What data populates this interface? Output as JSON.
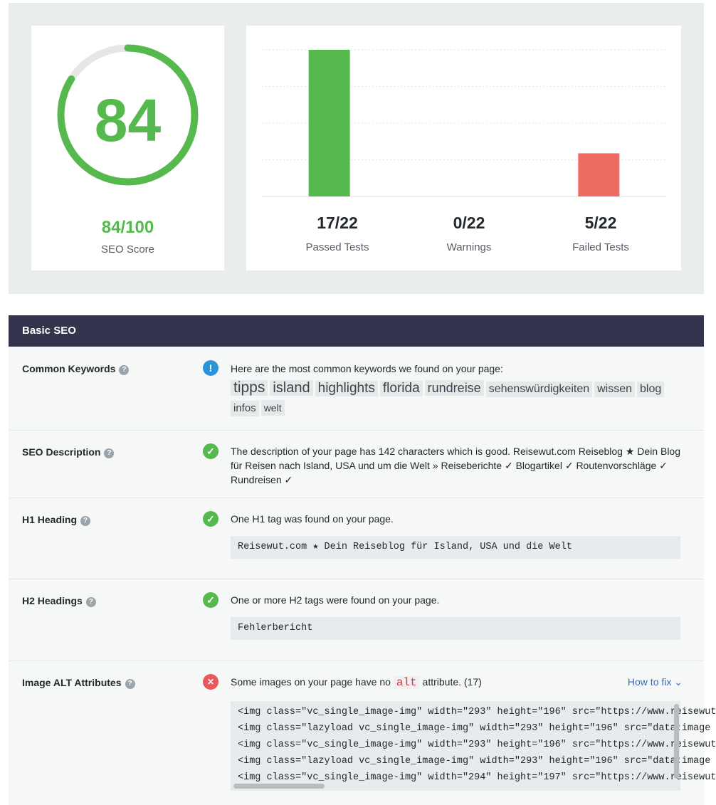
{
  "score": {
    "value": "84",
    "value_fraction": "84/100",
    "label": "SEO Score",
    "percent": 84,
    "color": "#55b94e"
  },
  "chart_data": {
    "type": "bar",
    "categories": [
      "Passed Tests",
      "Warnings",
      "Failed Tests"
    ],
    "values": [
      17,
      0,
      5
    ],
    "value_labels": [
      "17/22",
      "0/22",
      "5/22"
    ],
    "ymax": 22,
    "colors": [
      "#55b94e",
      "#e9edee",
      "#ee6b63"
    ],
    "grid": true
  },
  "section": {
    "title": "Basic SEO"
  },
  "rows": {
    "keywords": {
      "title": "Common Keywords",
      "text": "Here are the most common keywords we found on your page:",
      "items": [
        "tipps",
        "island",
        "highlights",
        "florida",
        "rundreise",
        "sehenswürdigkeiten",
        "wissen",
        "blog",
        "infos",
        "welt"
      ]
    },
    "description": {
      "title": "SEO Description",
      "text": "The description of your page has 142 characters which is good. Reisewut.com Reiseblog ★ Dein Blog für Reisen nach Island, USA und um die Welt » Reiseberichte ✓ Blogartikel ✓ Routenvorschläge ✓ Rundreisen ✓"
    },
    "h1": {
      "title": "H1 Heading",
      "text": "One H1 tag was found on your page.",
      "code": "Reisewut.com ★ Dein Reiseblog für Island, USA und die Welt"
    },
    "h2": {
      "title": "H2 Headings",
      "text": "One or more H2 tags were found on your page.",
      "code": "Fehlerbericht"
    },
    "img_alt": {
      "title": "Image ALT Attributes",
      "text_before": "Some images on your page have no",
      "alt_word": "alt",
      "text_after": "attribute. (17)",
      "how_to_fix": "How to fix",
      "code_lines": [
        "<img class=\"vc_single_image-img\" width=\"293\" height=\"196\" src=\"https://www.reisewut",
        "<img class=\"lazyload vc_single_image-img\" width=\"293\" height=\"196\" src=\"data:image",
        "<img class=\"vc_single_image-img\" width=\"293\" height=\"196\" src=\"https://www.reisewut",
        "<img class=\"lazyload vc_single_image-img\" width=\"293\" height=\"196\" src=\"data:image",
        "<img class=\"vc_single_image-img\" width=\"294\" height=\"197\" src=\"https://www.reisewut"
      ]
    }
  },
  "icons": {
    "help": "help-icon",
    "info": "info-icon",
    "check": "check-icon",
    "error": "error-icon",
    "chevron": "chevron-down-icon"
  }
}
